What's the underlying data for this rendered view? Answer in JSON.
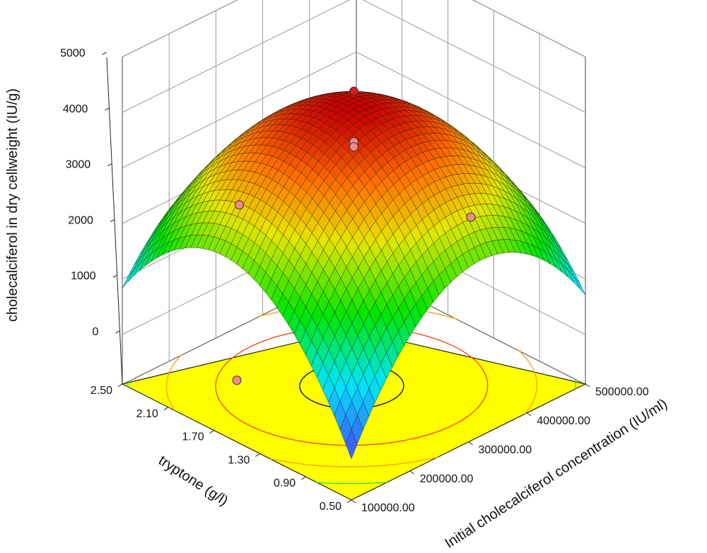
{
  "chart_data": {
    "type": "surface",
    "zlabel": "cholecalciferol in dry cellweight (IU/g)",
    "xlabel": "tryptone (g/l)",
    "ylabel": "Initial cholecalciferol concentration (IU/ml)",
    "x_ticks": [
      "0.50",
      "0.90",
      "1.30",
      "1.70",
      "2.10",
      "2.50"
    ],
    "y_ticks": [
      "100000.00",
      "200000.00",
      "300000.00",
      "400000.00",
      "500000.00"
    ],
    "z_ticks": [
      "0",
      "1000",
      "2000",
      "3000",
      "4000",
      "5000"
    ],
    "xlim": [
      0.5,
      2.5
    ],
    "ylim": [
      100000,
      500000
    ],
    "zlim": [
      0,
      5000
    ],
    "surface": {
      "center": [
        1.5,
        300000
      ],
      "peak": 4170,
      "corner_values": {
        "near": 0,
        "left": 900,
        "right": 650,
        "back": -600
      }
    },
    "design_points": [
      {
        "x": 1.5,
        "y": 300000,
        "z": 4380
      },
      {
        "x": 1.5,
        "y": 300000,
        "z": 3470
      },
      {
        "x": 1.5,
        "y": 300000,
        "z": 3380
      },
      {
        "x": 2.5,
        "y": 300000,
        "z": 1290
      },
      {
        "x": 1.5,
        "y": 500000,
        "z": 1070
      },
      {
        "x": 1.5,
        "y": 100000,
        "z": 220
      }
    ],
    "colors": {
      "floor": "#ffff00",
      "contour_black": "#000000",
      "contour_red": "#ff3b00",
      "contour_orange": "#ff9900",
      "contour_green": "#33dd33",
      "point_red": "#d81b1b",
      "point_pink": "#f08a8a"
    }
  }
}
